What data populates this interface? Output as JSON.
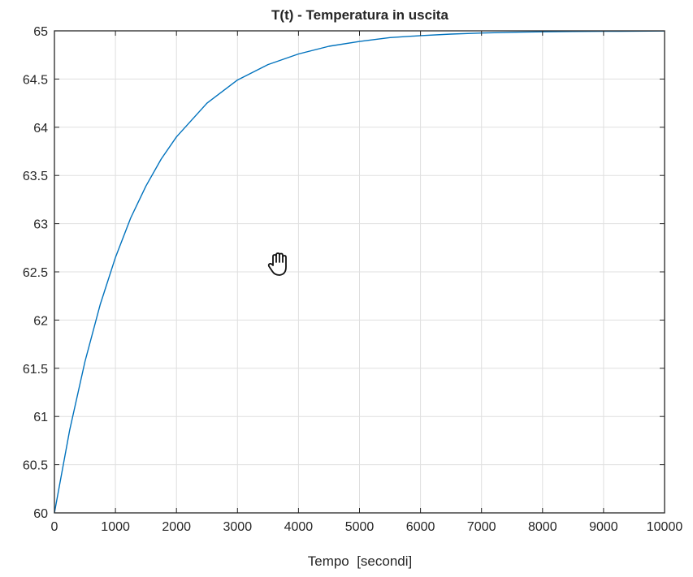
{
  "chart_data": {
    "type": "line",
    "title": "T(t) - Temperatura in uscita",
    "xlabel": "Tempo  [secondi]",
    "ylabel": "",
    "xlim": [
      0,
      10000
    ],
    "ylim": [
      60,
      65
    ],
    "xticks": [
      0,
      1000,
      2000,
      3000,
      4000,
      5000,
      6000,
      7000,
      8000,
      9000,
      10000
    ],
    "yticks": [
      60,
      60.5,
      61,
      61.5,
      62,
      62.5,
      63,
      63.5,
      64,
      64.5,
      65
    ],
    "grid": true,
    "series": [
      {
        "color": "#0072BD",
        "x": [
          0,
          250,
          500,
          750,
          1000,
          1250,
          1500,
          1750,
          2000,
          2500,
          3000,
          3500,
          4000,
          4500,
          5000,
          5500,
          6000,
          6500,
          7000,
          7500,
          8000,
          8500,
          9000,
          9500,
          10000
        ],
        "y": [
          60,
          60.86,
          61.57,
          62.16,
          62.65,
          63.06,
          63.39,
          63.67,
          63.9,
          64.25,
          64.49,
          64.65,
          64.76,
          64.84,
          64.89,
          64.93,
          64.95,
          64.966,
          64.977,
          64.985,
          64.99,
          64.993,
          64.995,
          64.997,
          64.998
        ]
      }
    ]
  },
  "cursor": {
    "icon": "hand-cursor-icon"
  }
}
